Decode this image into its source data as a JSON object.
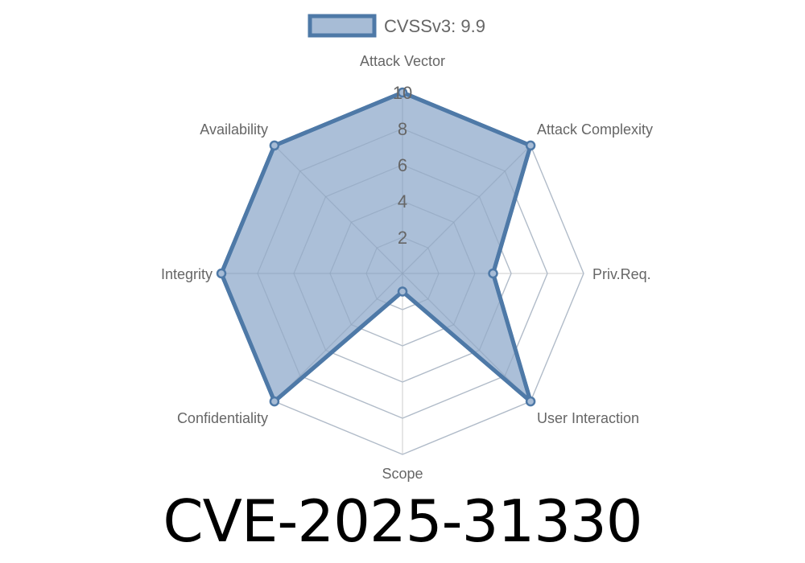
{
  "chart_data": {
    "type": "radar",
    "title": "",
    "categories": [
      "Attack Vector",
      "Attack Complexity",
      "Priv.Req.",
      "User Interaction",
      "Scope",
      "Confidentiality",
      "Integrity",
      "Availability"
    ],
    "series": [
      {
        "name": "CVSSv3: 9.9",
        "values": [
          10,
          10,
          5,
          10,
          1,
          10,
          10,
          10
        ]
      }
    ],
    "rlim": [
      0,
      10
    ],
    "ticks": [
      "2",
      "4",
      "6",
      "8",
      "10"
    ],
    "grid": true,
    "legend": "top",
    "colors": {
      "line": "#4e79a7",
      "fill": "#a7bcd6",
      "grid": "#dddddd"
    }
  },
  "caption": "CVE-2025-31330"
}
